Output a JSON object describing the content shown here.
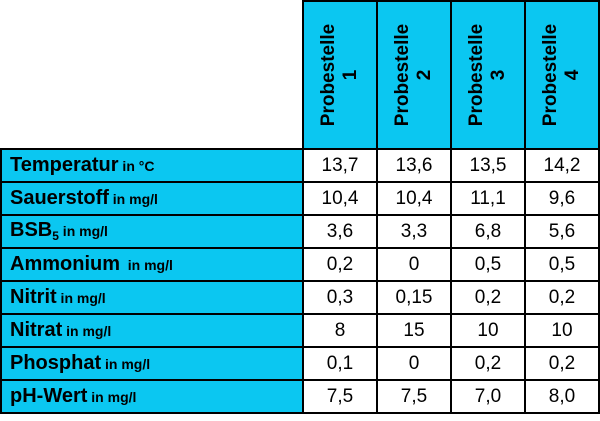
{
  "header": {
    "samples": [
      {
        "line1": "Probestelle",
        "line2": "1"
      },
      {
        "line1": "Probestelle",
        "line2": "2"
      },
      {
        "line1": "Probestelle",
        "line2": "3"
      },
      {
        "line1": "Probestelle",
        "line2": "4"
      }
    ]
  },
  "rows": [
    {
      "name": "Temperatur",
      "sub": "",
      "unit": " in °C",
      "values": [
        "13,7",
        "13,6",
        "13,5",
        "14,2"
      ]
    },
    {
      "name": "Sauerstoff",
      "sub": "",
      "unit": " in mg/l",
      "values": [
        "10,4",
        "10,4",
        "11,1",
        "9,6"
      ]
    },
    {
      "name": "BSB",
      "sub": "5",
      "unit": " in mg/l",
      "values": [
        "3,6",
        "3,3",
        "6,8",
        "5,6"
      ]
    },
    {
      "name": "Ammonium",
      "sub": "",
      "unit": "  in mg/l",
      "values": [
        "0,2",
        "0",
        "0,5",
        "0,5"
      ]
    },
    {
      "name": "Nitrit",
      "sub": "",
      "unit": " in mg/l",
      "values": [
        "0,3",
        "0,15",
        "0,2",
        "0,2"
      ]
    },
    {
      "name": "Nitrat",
      "sub": "",
      "unit": " in mg/l",
      "values": [
        "8",
        "15",
        "10",
        "10"
      ]
    },
    {
      "name": "Phosphat",
      "sub": "",
      "unit": " in mg/l",
      "values": [
        "0,1",
        "0",
        "0,2",
        "0,2"
      ]
    },
    {
      "name": "pH-Wert",
      "sub": "",
      "unit": " in mg/l",
      "values": [
        "7,5",
        "7,5",
        "7,0",
        "8,0"
      ]
    }
  ]
}
